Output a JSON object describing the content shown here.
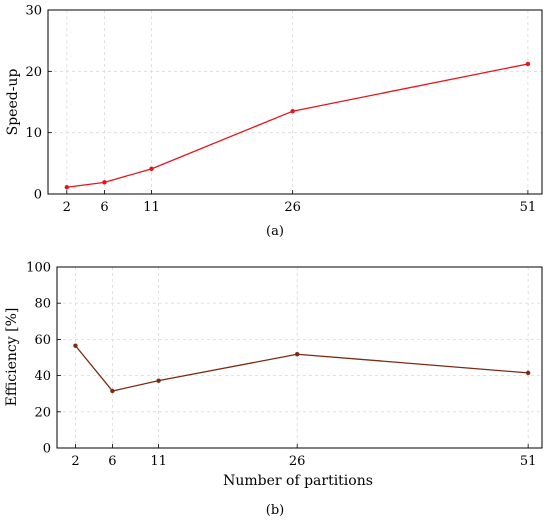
{
  "chart_data": [
    {
      "type": "line",
      "caption": "(a)",
      "xlabel": "",
      "ylabel": "Speed-up",
      "x": [
        2,
        6,
        11,
        26,
        51
      ],
      "xticks": [
        "2",
        "6",
        "11",
        "26",
        "51"
      ],
      "yticks": [
        "0",
        "10",
        "20",
        "30"
      ],
      "ylim": [
        0,
        30
      ],
      "grid": true,
      "color": "#e8141c",
      "series": [
        {
          "values": [
            1.1,
            1.9,
            4.1,
            13.5,
            21.2
          ]
        }
      ]
    },
    {
      "type": "line",
      "caption": "(b)",
      "xlabel": "Number of partitions",
      "ylabel": "Efficiency [%]",
      "x": [
        2,
        6,
        11,
        26,
        51
      ],
      "xticks": [
        "2",
        "6",
        "11",
        "26",
        "51"
      ],
      "yticks": [
        "0",
        "20",
        "40",
        "60",
        "80",
        "100"
      ],
      "ylim": [
        0,
        100
      ],
      "grid": true,
      "color": "#7a2b12",
      "series": [
        {
          "values": [
            56.5,
            31.5,
            37.2,
            51.8,
            41.5
          ]
        }
      ]
    }
  ]
}
